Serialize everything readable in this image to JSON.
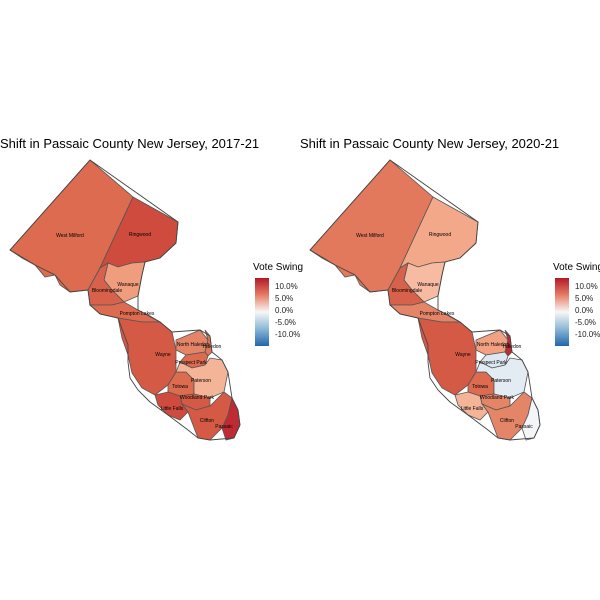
{
  "legend": {
    "title": "Vote Swing",
    "ticks": [
      "10.0%",
      "5.0%",
      "0.0%",
      "-5.0%",
      "-10.0%"
    ]
  },
  "maps": [
    {
      "title": "Shift in Passaic County New Jersey, 2017-21",
      "municipalities": [
        {
          "name": "West Milford",
          "fill": "#dc6b50"
        },
        {
          "name": "Ringwood",
          "fill": "#cf4b3d"
        },
        {
          "name": "Wanaque",
          "fill": "#ef9d7d"
        },
        {
          "name": "Bloomingdale",
          "fill": "#d8614b"
        },
        {
          "name": "Pompton Lakes",
          "fill": "#dc6b50"
        },
        {
          "name": "Wayne",
          "fill": "#d55a45"
        },
        {
          "name": "North Haledon",
          "fill": "#e48568"
        },
        {
          "name": "Haledon",
          "fill": "#df7659"
        },
        {
          "name": "Prospect Park",
          "fill": "#dc6b50"
        },
        {
          "name": "Totowa",
          "fill": "#dc6b50"
        },
        {
          "name": "Paterson",
          "fill": "#f4b497"
        },
        {
          "name": "Woodland Park",
          "fill": "#d55a45"
        },
        {
          "name": "Little Falls",
          "fill": "#cf4b3d"
        },
        {
          "name": "Clifton",
          "fill": "#d55a45"
        },
        {
          "name": "Passaic",
          "fill": "#c02a33"
        }
      ]
    },
    {
      "title": "Shift in Passaic County New Jersey, 2020-21",
      "municipalities": [
        {
          "name": "West Milford",
          "fill": "#e2795c"
        },
        {
          "name": "Ringwood",
          "fill": "#f4a88a"
        },
        {
          "name": "Wanaque",
          "fill": "#f7bba2"
        },
        {
          "name": "Bloomingdale",
          "fill": "#d8614b"
        },
        {
          "name": "Pompton Lakes",
          "fill": "#e48568"
        },
        {
          "name": "Wayne",
          "fill": "#d55a45"
        },
        {
          "name": "North Haledon",
          "fill": "#f2a183"
        },
        {
          "name": "Haledon",
          "fill": "#c02a33"
        },
        {
          "name": "Prospect Park",
          "fill": "#dde8f1"
        },
        {
          "name": "Totowa",
          "fill": "#dc6b50"
        },
        {
          "name": "Paterson",
          "fill": "#e3ebf3"
        },
        {
          "name": "Woodland Park",
          "fill": "#e48568"
        },
        {
          "name": "Little Falls",
          "fill": "#f4b497"
        },
        {
          "name": "Clifton",
          "fill": "#e48568"
        },
        {
          "name": "Passaic",
          "fill": "#f3f5f8"
        }
      ]
    }
  ]
}
